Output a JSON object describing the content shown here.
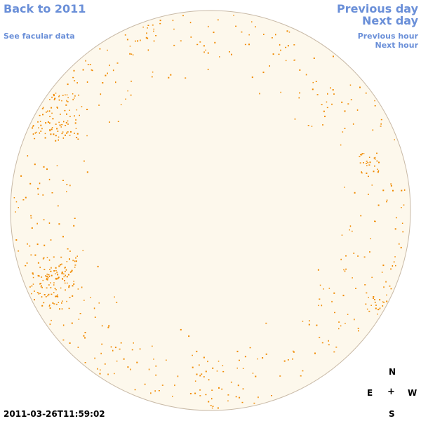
{
  "nav": {
    "back_label": "Back to 2011",
    "facular_label": "See facular data",
    "previous_day_label": "Previous day",
    "next_day_label": "Next day",
    "previous_hour_label": "Previous hour",
    "next_hour_label": "Next hour"
  },
  "compass": {
    "north": "N",
    "east": "E",
    "center": "+",
    "west": "W",
    "south": "S"
  },
  "timestamp": "2011-03-26T11:59:02",
  "colors": {
    "disk_fill": "#fdf8ec",
    "disk_border": "#c8b9a6",
    "spot": "#f08a00",
    "link": "#6a8fd8"
  }
}
